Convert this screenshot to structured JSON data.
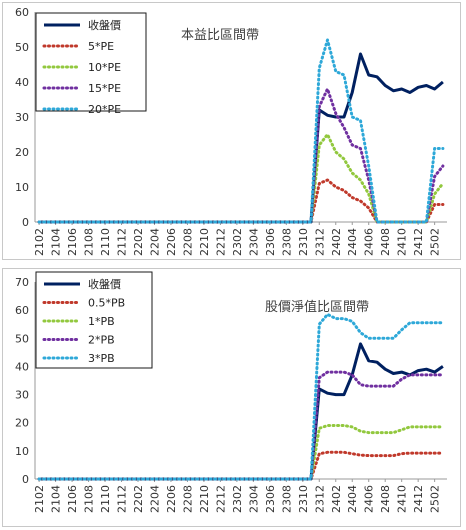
{
  "chart_data": [
    {
      "type": "line",
      "title": "本益比區間帶",
      "xlabel": "",
      "ylabel": "",
      "ylim": [
        0,
        60
      ],
      "yticks": [
        0,
        10,
        20,
        30,
        40,
        50,
        60
      ],
      "x": [
        "2102",
        "2103",
        "2104",
        "2105",
        "2106",
        "2107",
        "2108",
        "2109",
        "2110",
        "2111",
        "2112",
        "2201",
        "2202",
        "2203",
        "2204",
        "2205",
        "2206",
        "2207",
        "2208",
        "2209",
        "2210",
        "2211",
        "2212",
        "2301",
        "2302",
        "2303",
        "2304",
        "2305",
        "2306",
        "2307",
        "2308",
        "2309",
        "2310",
        "2311",
        "2312",
        "2401",
        "2402",
        "2403",
        "2404",
        "2405",
        "2406",
        "2407",
        "2408",
        "2409",
        "2410",
        "2411",
        "2412",
        "2501",
        "2502",
        "2503"
      ],
      "x_tick_labels": [
        "2102",
        "2104",
        "2106",
        "2108",
        "2110",
        "2112",
        "2202",
        "2204",
        "2206",
        "2208",
        "2210",
        "2212",
        "2302",
        "2304",
        "2306",
        "2308",
        "2310",
        "2312",
        "2402",
        "2404",
        "2406",
        "2408",
        "2410",
        "2412",
        "2502"
      ],
      "legend_position": "top-left",
      "grid": false,
      "series": [
        {
          "name": "收盤價",
          "color": "#002060",
          "style": "solid",
          "values": [
            0,
            0,
            0,
            0,
            0,
            0,
            0,
            0,
            0,
            0,
            0,
            0,
            0,
            0,
            0,
            0,
            0,
            0,
            0,
            0,
            0,
            0,
            0,
            0,
            0,
            0,
            0,
            0,
            0,
            0,
            0,
            0,
            0,
            0,
            32,
            30.5,
            30,
            30,
            37,
            48,
            42,
            41.5,
            39,
            37.5,
            38,
            37,
            38.5,
            39,
            38,
            40
          ]
        },
        {
          "name": "5*PE",
          "color": "#c0392b",
          "style": "dotted",
          "values": [
            0,
            0,
            0,
            0,
            0,
            0,
            0,
            0,
            0,
            0,
            0,
            0,
            0,
            0,
            0,
            0,
            0,
            0,
            0,
            0,
            0,
            0,
            0,
            0,
            0,
            0,
            0,
            0,
            0,
            0,
            0,
            0,
            0,
            0,
            11,
            12,
            10,
            9,
            7,
            6,
            4,
            0,
            0,
            0,
            0,
            0,
            0,
            0,
            5,
            5
          ]
        },
        {
          "name": "10*PE",
          "color": "#92c83e",
          "style": "dotted",
          "values": [
            0,
            0,
            0,
            0,
            0,
            0,
            0,
            0,
            0,
            0,
            0,
            0,
            0,
            0,
            0,
            0,
            0,
            0,
            0,
            0,
            0,
            0,
            0,
            0,
            0,
            0,
            0,
            0,
            0,
            0,
            0,
            0,
            0,
            0,
            22,
            25,
            20,
            18,
            14,
            12,
            8,
            0,
            0,
            0,
            0,
            0,
            0,
            0,
            8,
            11
          ]
        },
        {
          "name": "15*PE",
          "color": "#7030a0",
          "style": "dotted",
          "values": [
            0,
            0,
            0,
            0,
            0,
            0,
            0,
            0,
            0,
            0,
            0,
            0,
            0,
            0,
            0,
            0,
            0,
            0,
            0,
            0,
            0,
            0,
            0,
            0,
            0,
            0,
            0,
            0,
            0,
            0,
            0,
            0,
            0,
            0,
            33,
            38,
            31,
            27,
            22,
            21,
            12,
            0,
            0,
            0,
            0,
            0,
            0,
            0,
            13,
            16
          ]
        },
        {
          "name": "20*PE",
          "color": "#2ea8d8",
          "style": "dotted",
          "values": [
            0,
            0,
            0,
            0,
            0,
            0,
            0,
            0,
            0,
            0,
            0,
            0,
            0,
            0,
            0,
            0,
            0,
            0,
            0,
            0,
            0,
            0,
            0,
            0,
            0,
            0,
            0,
            0,
            0,
            0,
            0,
            0,
            0,
            0,
            44,
            52,
            43,
            42,
            30,
            29,
            16,
            0,
            0,
            0,
            0,
            0,
            0,
            0,
            21,
            21
          ]
        }
      ]
    },
    {
      "type": "line",
      "title": "股價淨值比區間帶",
      "xlabel": "",
      "ylabel": "",
      "ylim": [
        0,
        70
      ],
      "yticks": [
        0,
        10,
        20,
        30,
        40,
        50,
        60,
        70
      ],
      "x": [
        "2102",
        "2103",
        "2104",
        "2105",
        "2106",
        "2107",
        "2108",
        "2109",
        "2110",
        "2111",
        "2112",
        "2201",
        "2202",
        "2203",
        "2204",
        "2205",
        "2206",
        "2207",
        "2208",
        "2209",
        "2210",
        "2211",
        "2212",
        "2301",
        "2302",
        "2303",
        "2304",
        "2305",
        "2306",
        "2307",
        "2308",
        "2309",
        "2310",
        "2311",
        "2312",
        "2401",
        "2402",
        "2403",
        "2404",
        "2405",
        "2406",
        "2407",
        "2408",
        "2409",
        "2410",
        "2411",
        "2412",
        "2501",
        "2502",
        "2503"
      ],
      "x_tick_labels": [
        "2102",
        "2104",
        "2106",
        "2108",
        "2110",
        "2112",
        "2202",
        "2204",
        "2206",
        "2208",
        "2210",
        "2212",
        "2302",
        "2304",
        "2306",
        "2308",
        "2310",
        "2312",
        "2402",
        "2404",
        "2406",
        "2408",
        "2410",
        "2412",
        "2502"
      ],
      "legend_position": "top-left",
      "grid": false,
      "series": [
        {
          "name": "收盤價",
          "color": "#002060",
          "style": "solid",
          "values": [
            0,
            0,
            0,
            0,
            0,
            0,
            0,
            0,
            0,
            0,
            0,
            0,
            0,
            0,
            0,
            0,
            0,
            0,
            0,
            0,
            0,
            0,
            0,
            0,
            0,
            0,
            0,
            0,
            0,
            0,
            0,
            0,
            0,
            0,
            32,
            30.5,
            30,
            30,
            37,
            48,
            42,
            41.5,
            39,
            37.5,
            38,
            37,
            38.5,
            39,
            38,
            40
          ]
        },
        {
          "name": "0.5*PB",
          "color": "#c0392b",
          "style": "dotted",
          "values": [
            0,
            0,
            0,
            0,
            0,
            0,
            0,
            0,
            0,
            0,
            0,
            0,
            0,
            0,
            0,
            0,
            0,
            0,
            0,
            0,
            0,
            0,
            0,
            0,
            0,
            0,
            0,
            0,
            0,
            0,
            0,
            0,
            0,
            0,
            9,
            9.5,
            9.5,
            9.5,
            9,
            8.5,
            8.3,
            8.3,
            8.3,
            8.3,
            9,
            9.2,
            9.2,
            9.2,
            9.2,
            9.2
          ]
        },
        {
          "name": "1*PB",
          "color": "#92c83e",
          "style": "dotted",
          "values": [
            0,
            0,
            0,
            0,
            0,
            0,
            0,
            0,
            0,
            0,
            0,
            0,
            0,
            0,
            0,
            0,
            0,
            0,
            0,
            0,
            0,
            0,
            0,
            0,
            0,
            0,
            0,
            0,
            0,
            0,
            0,
            0,
            0,
            0,
            18,
            19,
            19,
            19,
            18.5,
            17,
            16.5,
            16.5,
            16.5,
            16.5,
            17.5,
            18.5,
            18.5,
            18.5,
            18.5,
            18.5
          ]
        },
        {
          "name": "2*PB",
          "color": "#7030a0",
          "style": "dotted",
          "values": [
            0,
            0,
            0,
            0,
            0,
            0,
            0,
            0,
            0,
            0,
            0,
            0,
            0,
            0,
            0,
            0,
            0,
            0,
            0,
            0,
            0,
            0,
            0,
            0,
            0,
            0,
            0,
            0,
            0,
            0,
            0,
            0,
            0,
            0,
            36,
            38,
            38,
            38,
            37,
            33.5,
            33,
            33,
            33,
            33,
            35.5,
            37,
            37,
            37,
            37,
            37
          ]
        },
        {
          "name": "3*PB",
          "color": "#2ea8d8",
          "style": "dotted",
          "values": [
            0,
            0,
            0,
            0,
            0,
            0,
            0,
            0,
            0,
            0,
            0,
            0,
            0,
            0,
            0,
            0,
            0,
            0,
            0,
            0,
            0,
            0,
            0,
            0,
            0,
            0,
            0,
            0,
            0,
            0,
            0,
            0,
            0,
            0,
            55,
            58.5,
            57,
            57,
            56,
            52,
            50,
            50,
            50,
            50,
            53,
            55.5,
            55.5,
            55.5,
            55.5,
            55.5
          ]
        }
      ]
    }
  ]
}
